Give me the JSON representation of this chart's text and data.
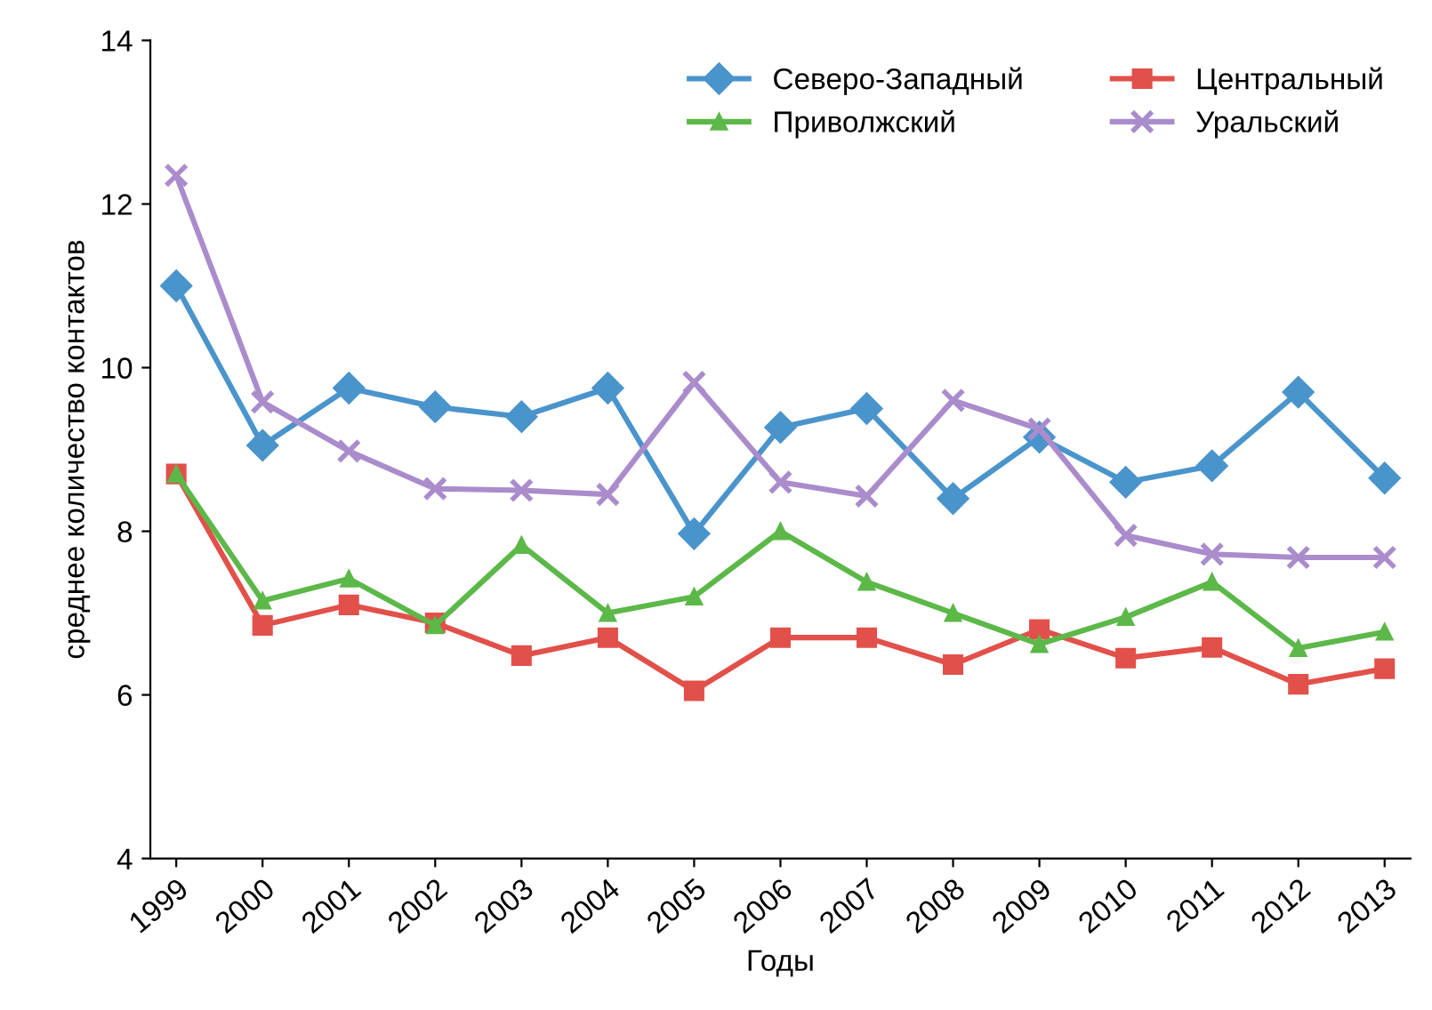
{
  "chart_data": {
    "type": "line",
    "xlabel": "Годы",
    "ylabel": "среднее количество контактов",
    "categories": [
      "1999",
      "2000",
      "2001",
      "2002",
      "2003",
      "2004",
      "2005",
      "2006",
      "2007",
      "2008",
      "2009",
      "2010",
      "2011",
      "2012",
      "2013"
    ],
    "series": [
      {
        "name": "Северо-Западный",
        "color": "#4a94cc",
        "marker": "diamond",
        "values": [
          11.0,
          9.05,
          9.75,
          9.52,
          9.4,
          9.75,
          7.97,
          9.27,
          9.5,
          8.4,
          9.15,
          8.6,
          8.8,
          9.7,
          8.65
        ]
      },
      {
        "name": "Центральный",
        "color": "#e2504a",
        "marker": "square",
        "values": [
          8.7,
          6.85,
          7.1,
          6.88,
          6.48,
          6.7,
          6.05,
          6.7,
          6.7,
          6.37,
          6.8,
          6.45,
          6.58,
          6.13,
          6.32
        ]
      },
      {
        "name": "Приволжский",
        "color": "#5cb848",
        "marker": "triangle",
        "values": [
          8.7,
          7.15,
          7.42,
          6.85,
          7.83,
          7.0,
          7.2,
          8.0,
          7.38,
          7.0,
          6.62,
          6.95,
          7.38,
          6.57,
          6.77
        ]
      },
      {
        "name": "Уральский",
        "color": "#aa8ccc",
        "marker": "cross",
        "values": [
          12.35,
          9.58,
          8.98,
          8.52,
          8.5,
          8.45,
          9.82,
          8.6,
          8.43,
          9.6,
          9.25,
          7.95,
          7.72,
          7.68,
          7.68
        ]
      }
    ],
    "ylim": [
      4,
      14
    ],
    "yticks": [
      4,
      6,
      8,
      10,
      12,
      14
    ],
    "grid": false,
    "legend": "top right",
    "line_style": "solid"
  }
}
